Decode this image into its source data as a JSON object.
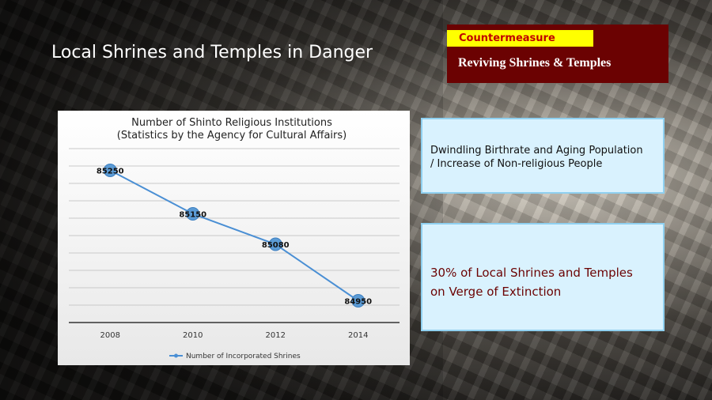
{
  "slide": {
    "title": "Local Shrines and Temples in Danger",
    "countermeasure_label": "Countermeasure",
    "countermeasure_text": "Reviving Shrines & Temples"
  },
  "info_boxes": [
    {
      "line1": "Dwindling Birthrate and Aging Population",
      "line2": "/ Increase of Non-religious People"
    },
    {
      "line1": "30% of Local Shrines and Temples",
      "line2": "on Verge of Extinction"
    }
  ],
  "colors": {
    "title_text": "#ffffff",
    "countermeasure_bg": "#6b0202",
    "countermeasure_label_bg": "#ffff00",
    "countermeasure_label_text": "#c00000",
    "info_box_bg": "#d9f2fe",
    "info_box_border": "#8fd0f0",
    "series_line": "#4a8fd4",
    "extinction_text": "#6b0202"
  },
  "chart_data": {
    "type": "line",
    "title": "Number of Shinto Religious Institutions",
    "subtitle": "(Statistics by the Agency for Cultural Affairs)",
    "categories": [
      "2008",
      "2010",
      "2012",
      "2014"
    ],
    "series": [
      {
        "name": "Number of Incorporated Shrines",
        "values": [
          85250,
          85150,
          85080,
          84950
        ]
      }
    ],
    "data_labels": [
      "85250",
      "85150",
      "85080",
      "84950"
    ],
    "ylim": [
      84900,
      85300
    ],
    "y_axis_labels_shown": false,
    "grid": true,
    "legend_position": "bottom"
  }
}
